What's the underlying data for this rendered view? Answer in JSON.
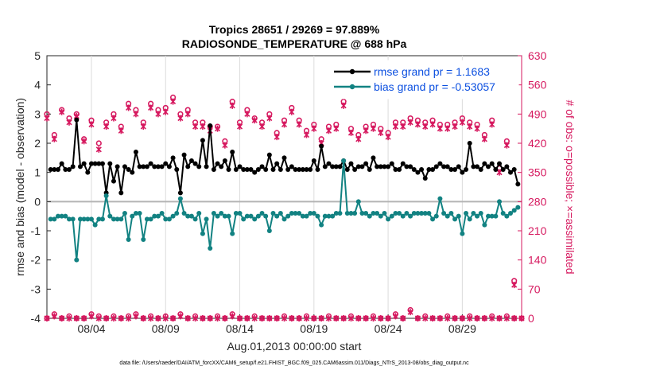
{
  "chart_data": {
    "type": "line",
    "title": "Tropics 28651 / 29269 = 97.889%",
    "subtitle": "RADIOSONDE_TEMPERATURE @ 688 hPa",
    "xlabel": "Aug.01,2013 00:00:00 start",
    "ylabel": "rmse and bias (model - observation)",
    "ylabel_right": "# of obs: o=possible; ×=assimilated",
    "ylim": [
      -4,
      5
    ],
    "ylim_right": [
      0,
      630
    ],
    "xlim": [
      1,
      33
    ],
    "x_tick_values": [
      4,
      9,
      14,
      19,
      24,
      29
    ],
    "x_tick_labels": [
      "08/04",
      "08/09",
      "08/14",
      "08/19",
      "08/24",
      "08/29"
    ],
    "y_ticks": [
      -4,
      -3,
      -2,
      -1,
      0,
      1,
      2,
      3,
      4,
      5
    ],
    "y_ticks_right": [
      0,
      70,
      140,
      210,
      280,
      350,
      420,
      490,
      560,
      630
    ],
    "legend_position": "top-right",
    "footer": "data file: /Users/raeder/DAI/ATM_forcXX/CAM6_setup/f.e21.FHIST_BGC.f09_025.CAM6assim.011/Diags_NTrS_2013-08/obs_diag_output.nc",
    "series": [
      {
        "name": "rmse grand pr = 1.1683",
        "color": "#000000",
        "x": [
          1.25,
          1.75,
          2.25,
          2.75,
          3.25,
          3.75,
          4.25,
          4.75,
          5.25,
          5.75,
          6.25,
          6.75,
          7.25,
          7.75,
          8.25,
          8.75,
          9.25,
          9.75,
          10.25,
          10.75,
          11.25,
          11.75,
          12.25,
          12.75,
          13.25,
          13.75,
          14.25,
          14.75,
          15.25,
          15.75,
          16.25,
          16.75,
          17.25,
          17.75,
          18.25,
          18.75,
          19.25,
          19.75,
          20.25,
          20.75,
          21.25,
          21.75,
          22.25,
          22.75,
          23.25,
          23.75,
          24.25,
          24.75,
          25.25,
          25.75,
          26.25,
          26.75,
          27.25,
          27.75,
          28.25,
          28.75,
          29.25,
          29.75,
          30.25,
          30.75,
          31.25,
          31.75,
          32.25,
          32.75,
          1.5,
          2.0,
          2.5,
          3.0,
          3.5,
          4.0,
          4.5,
          5.0,
          5.5,
          6.0,
          6.5,
          7.0,
          7.5,
          8.0,
          8.5,
          9.0,
          9.5,
          10.0,
          10.5,
          11.0,
          11.5,
          12.0,
          12.5,
          13.0,
          13.5,
          14.0,
          14.5,
          15.0,
          15.5,
          16.0,
          16.5,
          17.0,
          17.5,
          18.0,
          18.5,
          19.0,
          19.5,
          20.0,
          20.5,
          21.0,
          21.5,
          22.0,
          22.5,
          23.0,
          23.5,
          24.0,
          24.5,
          25.0,
          25.5,
          26.0,
          26.5,
          27.0,
          27.5,
          28.0,
          28.5,
          29.0,
          29.5,
          30.0,
          30.5,
          31.0,
          31.5,
          32.0,
          32.5
        ],
        "values": [
          1.1,
          1.1,
          1.1,
          1.2,
          1.2,
          1.0,
          1.3,
          1.3,
          1.3,
          1.2,
          1.2,
          1.0,
          1.2,
          1.2,
          1.2,
          1.2,
          1.2,
          1.1,
          1.6,
          1.4,
          1.2,
          1.2,
          1.1,
          1.2,
          1.1,
          1.1,
          1.1,
          1.1,
          1.1,
          1.1,
          1.1,
          1.1,
          1.1,
          1.1,
          1.1,
          1.1,
          1.1,
          1.2,
          1.2,
          1.2,
          1.1,
          1.1,
          1.2,
          1.1,
          1.2,
          1.2,
          1.3,
          1.1,
          1.2,
          1.1,
          1.1,
          1.1,
          1.2,
          1.2,
          1.1,
          1.2,
          1.1,
          1.2,
          1.1,
          1.2,
          1.1,
          1.1,
          1.0,
          0.6,
          1.1,
          1.3,
          1.1,
          2.8,
          1.3,
          1.3,
          1.3,
          0.3,
          0.7,
          0.3,
          1.1,
          1.7,
          1.2,
          1.3,
          1.2,
          1.3,
          1.5,
          0.3,
          1.2,
          1.3,
          2.1,
          2.6,
          1.3,
          1.4,
          1.7,
          1.2,
          1.1,
          1.0,
          1.2,
          1.6,
          1.3,
          1.5,
          1.2,
          1.1,
          1.1,
          1.4,
          1.9,
          1.3,
          1.2,
          1.4,
          1.3,
          1.2,
          1.3,
          1.5,
          1.2,
          1.2,
          1.1,
          1.3,
          1.2,
          1.0,
          0.8,
          1.1,
          1.3,
          1.2,
          1.1,
          1.0,
          2.0,
          1.2,
          1.3,
          1.3,
          1.3,
          1.2,
          1.1
        ]
      },
      {
        "name": "bias grand pr = -0.53057",
        "color": "#128282",
        "x": [
          1.25,
          1.75,
          2.25,
          2.75,
          3.25,
          3.75,
          4.25,
          4.75,
          5.25,
          5.75,
          6.25,
          6.75,
          7.25,
          7.75,
          8.25,
          8.75,
          9.25,
          9.75,
          10.25,
          10.75,
          11.25,
          11.75,
          12.25,
          12.75,
          13.25,
          13.75,
          14.25,
          14.75,
          15.25,
          15.75,
          16.25,
          16.75,
          17.25,
          17.75,
          18.25,
          18.75,
          19.25,
          19.75,
          20.25,
          20.75,
          21.25,
          21.75,
          22.25,
          22.75,
          23.25,
          23.75,
          24.25,
          24.75,
          25.25,
          25.75,
          26.25,
          26.75,
          27.25,
          27.75,
          28.25,
          28.75,
          29.25,
          29.75,
          30.25,
          30.75,
          31.25,
          31.75,
          32.25,
          32.75,
          1.5,
          2.0,
          2.5,
          3.0,
          3.5,
          4.0,
          4.5,
          5.0,
          5.5,
          6.0,
          6.5,
          7.0,
          7.5,
          8.0,
          8.5,
          9.0,
          9.5,
          10.0,
          10.5,
          11.0,
          11.5,
          12.0,
          12.5,
          13.0,
          13.5,
          14.0,
          14.5,
          15.0,
          15.5,
          16.0,
          16.5,
          17.0,
          17.5,
          18.0,
          18.5,
          19.0,
          19.5,
          20.0,
          20.5,
          21.0,
          21.5,
          22.0,
          22.5,
          23.0,
          23.5,
          24.0,
          24.5,
          25.0,
          25.5,
          26.0,
          26.5,
          27.0,
          27.5,
          28.0,
          28.5,
          29.0,
          29.5,
          30.0,
          30.5,
          31.0,
          31.5,
          32.0,
          32.5
        ],
        "values": [
          -0.6,
          -0.5,
          -0.5,
          -0.6,
          -0.6,
          -0.6,
          -0.8,
          -0.6,
          -0.5,
          -0.6,
          -0.4,
          -0.5,
          -0.4,
          -0.6,
          -0.5,
          -0.4,
          -0.6,
          -0.4,
          -0.4,
          -0.5,
          -0.4,
          -0.6,
          -0.4,
          -0.4,
          -0.5,
          -0.4,
          -0.6,
          -0.5,
          -0.5,
          -0.5,
          -0.4,
          -0.4,
          -0.5,
          -0.4,
          -0.5,
          -0.4,
          -0.5,
          -0.5,
          -0.5,
          -0.4,
          -0.4,
          -0.4,
          -0.4,
          -0.5,
          -0.4,
          -0.4,
          -0.5,
          -0.4,
          -0.4,
          -0.4,
          -0.4,
          -0.4,
          -0.5,
          -0.4,
          -0.4,
          -0.5,
          -0.4,
          -0.4,
          -0.4,
          -0.5,
          -0.5,
          -0.4,
          -0.4,
          -0.2,
          -0.6,
          -0.5,
          -0.6,
          -2.0,
          -0.6,
          -0.6,
          -0.6,
          0.2,
          -0.6,
          -0.6,
          -1.3,
          -0.4,
          -1.3,
          -0.6,
          -0.5,
          -0.6,
          -0.5,
          0.1,
          -0.5,
          -0.6,
          -1.1,
          -1.6,
          -0.5,
          -0.5,
          -1.1,
          -0.4,
          -0.5,
          -0.6,
          -0.4,
          -1.0,
          -0.5,
          -0.6,
          -0.4,
          -0.4,
          -0.5,
          -0.4,
          -0.8,
          -0.5,
          -0.4,
          1.4,
          -0.4,
          0.0,
          -0.4,
          -0.4,
          -0.5,
          -0.6,
          -0.4,
          -0.5,
          -0.5,
          -0.4,
          -0.4,
          -0.6,
          0.1,
          -0.5,
          -0.6,
          -1.1,
          -0.6,
          -0.5,
          -0.8,
          -0.5,
          0.0,
          -0.5,
          -0.3
        ]
      }
    ],
    "obs_possible": {
      "name": "possible",
      "color": "#d6195f",
      "x": [
        1.0,
        1.5,
        2.0,
        2.5,
        3.0,
        3.5,
        4.0,
        4.5,
        5.0,
        5.5,
        6.0,
        6.5,
        7.0,
        7.5,
        8.0,
        8.5,
        9.0,
        9.5,
        10.0,
        10.5,
        11.0,
        11.5,
        12.0,
        12.5,
        13.0,
        13.5,
        14.0,
        14.5,
        15.0,
        15.5,
        16.0,
        16.5,
        17.0,
        17.5,
        18.0,
        18.5,
        19.0,
        19.5,
        20.0,
        20.5,
        21.0,
        21.5,
        22.0,
        22.5,
        23.0,
        23.5,
        24.0,
        24.5,
        25.0,
        25.5,
        26.0,
        26.5,
        27.0,
        27.5,
        28.0,
        28.5,
        29.0,
        29.5,
        30.0,
        30.5,
        31.0,
        31.5,
        32.0,
        32.5
      ],
      "values": [
        490,
        440,
        500,
        480,
        490,
        430,
        475,
        420,
        470,
        490,
        460,
        515,
        500,
        470,
        515,
        500,
        505,
        530,
        490,
        500,
        470,
        470,
        460,
        460,
        425,
        520,
        470,
        500,
        480,
        470,
        490,
        445,
        475,
        505,
        475,
        450,
        465,
        430,
        460,
        465,
        520,
        455,
        440,
        460,
        465,
        455,
        445,
        470,
        470,
        480,
        475,
        470,
        475,
        465,
        465,
        470,
        480,
        470,
        465,
        440,
        475,
        360,
        425,
        90
      ]
    },
    "obs_assimilated": {
      "name": "assimilated",
      "color": "#d6195f",
      "x": [
        1.0,
        1.5,
        2.0,
        2.5,
        3.0,
        3.5,
        4.0,
        4.5,
        5.0,
        5.5,
        6.0,
        6.5,
        7.0,
        7.5,
        8.0,
        8.5,
        9.0,
        9.5,
        10.0,
        10.5,
        11.0,
        11.5,
        12.0,
        12.5,
        13.0,
        13.5,
        14.0,
        14.5,
        15.0,
        15.5,
        16.0,
        16.5,
        17.0,
        17.5,
        18.0,
        18.5,
        19.0,
        19.5,
        20.0,
        20.5,
        21.0,
        21.5,
        22.0,
        22.5,
        23.0,
        23.5,
        24.0,
        24.5,
        25.0,
        25.5,
        26.0,
        26.5,
        27.0,
        27.5,
        28.0,
        28.5,
        29.0,
        29.5,
        30.0,
        30.5,
        31.0,
        31.5,
        32.0,
        32.5
      ],
      "values": [
        480,
        430,
        495,
        470,
        485,
        425,
        465,
        405,
        460,
        480,
        450,
        505,
        490,
        460,
        505,
        490,
        495,
        520,
        480,
        490,
        460,
        460,
        450,
        455,
        415,
        510,
        460,
        490,
        475,
        460,
        480,
        435,
        465,
        495,
        465,
        440,
        455,
        420,
        450,
        455,
        510,
        445,
        430,
        450,
        455,
        445,
        435,
        460,
        460,
        470,
        465,
        460,
        465,
        455,
        455,
        460,
        470,
        460,
        455,
        430,
        465,
        350,
        415,
        80
      ]
    },
    "obs_bottom_possible": {
      "x": [
        1.0,
        1.5,
        2.0,
        2.5,
        3.0,
        3.5,
        4.0,
        4.5,
        5.0,
        5.5,
        6.0,
        6.5,
        7.0,
        7.5,
        8.0,
        8.5,
        9.0,
        9.5,
        10.0,
        10.5,
        11.0,
        11.5,
        12.0,
        12.5,
        13.0,
        13.5,
        14.0,
        14.5,
        15.0,
        15.5,
        16.0,
        16.5,
        17.0,
        17.5,
        18.0,
        18.5,
        19.0,
        19.5,
        20.0,
        20.5,
        21.0,
        21.5,
        22.0,
        22.5,
        23.0,
        23.5,
        24.0,
        24.5,
        25.0,
        25.5,
        26.0,
        26.5,
        27.0,
        27.5,
        28.0,
        28.5,
        29.0,
        29.5,
        30.0,
        30.5,
        31.0,
        31.5,
        32.0,
        32.5,
        33.0
      ],
      "values": [
        0,
        10,
        0,
        5,
        0,
        0,
        10,
        5,
        0,
        5,
        0,
        5,
        10,
        0,
        5,
        0,
        5,
        0,
        10,
        0,
        5,
        0,
        0,
        5,
        0,
        10,
        0,
        0,
        5,
        0,
        0,
        0,
        5,
        0,
        0,
        5,
        0,
        0,
        5,
        0,
        0,
        5,
        0,
        0,
        5,
        0,
        0,
        10,
        0,
        20,
        0,
        5,
        0,
        0,
        5,
        0,
        0,
        5,
        0,
        0,
        5,
        0,
        5,
        0,
        0
      ]
    },
    "obs_bottom_assimilated": {
      "x": [
        1.0,
        1.5,
        2.0,
        2.5,
        3.0,
        3.5,
        4.0,
        4.5,
        5.0,
        5.5,
        6.0,
        6.5,
        7.0,
        7.5,
        8.0,
        8.5,
        9.0,
        9.5,
        10.0,
        10.5,
        11.0,
        11.5,
        12.0,
        12.5,
        13.0,
        13.5,
        14.0,
        14.5,
        15.0,
        15.5,
        16.0,
        16.5,
        17.0,
        17.5,
        18.0,
        18.5,
        19.0,
        19.5,
        20.0,
        20.5,
        21.0,
        21.5,
        22.0,
        22.5,
        23.0,
        23.5,
        24.0,
        24.5,
        25.0,
        25.5,
        26.0,
        26.5,
        27.0,
        27.5,
        28.0,
        28.5,
        29.0,
        29.5,
        30.0,
        30.5,
        31.0,
        31.5,
        32.0,
        32.5,
        33.0
      ],
      "values": [
        0,
        5,
        0,
        0,
        0,
        0,
        5,
        0,
        0,
        0,
        0,
        0,
        5,
        0,
        0,
        0,
        0,
        0,
        5,
        0,
        0,
        0,
        0,
        0,
        0,
        5,
        0,
        0,
        0,
        0,
        0,
        0,
        0,
        0,
        0,
        0,
        0,
        0,
        0,
        0,
        0,
        0,
        0,
        0,
        0,
        0,
        0,
        5,
        0,
        15,
        0,
        0,
        0,
        0,
        0,
        0,
        0,
        0,
        0,
        0,
        0,
        0,
        0,
        0,
        0
      ]
    }
  }
}
